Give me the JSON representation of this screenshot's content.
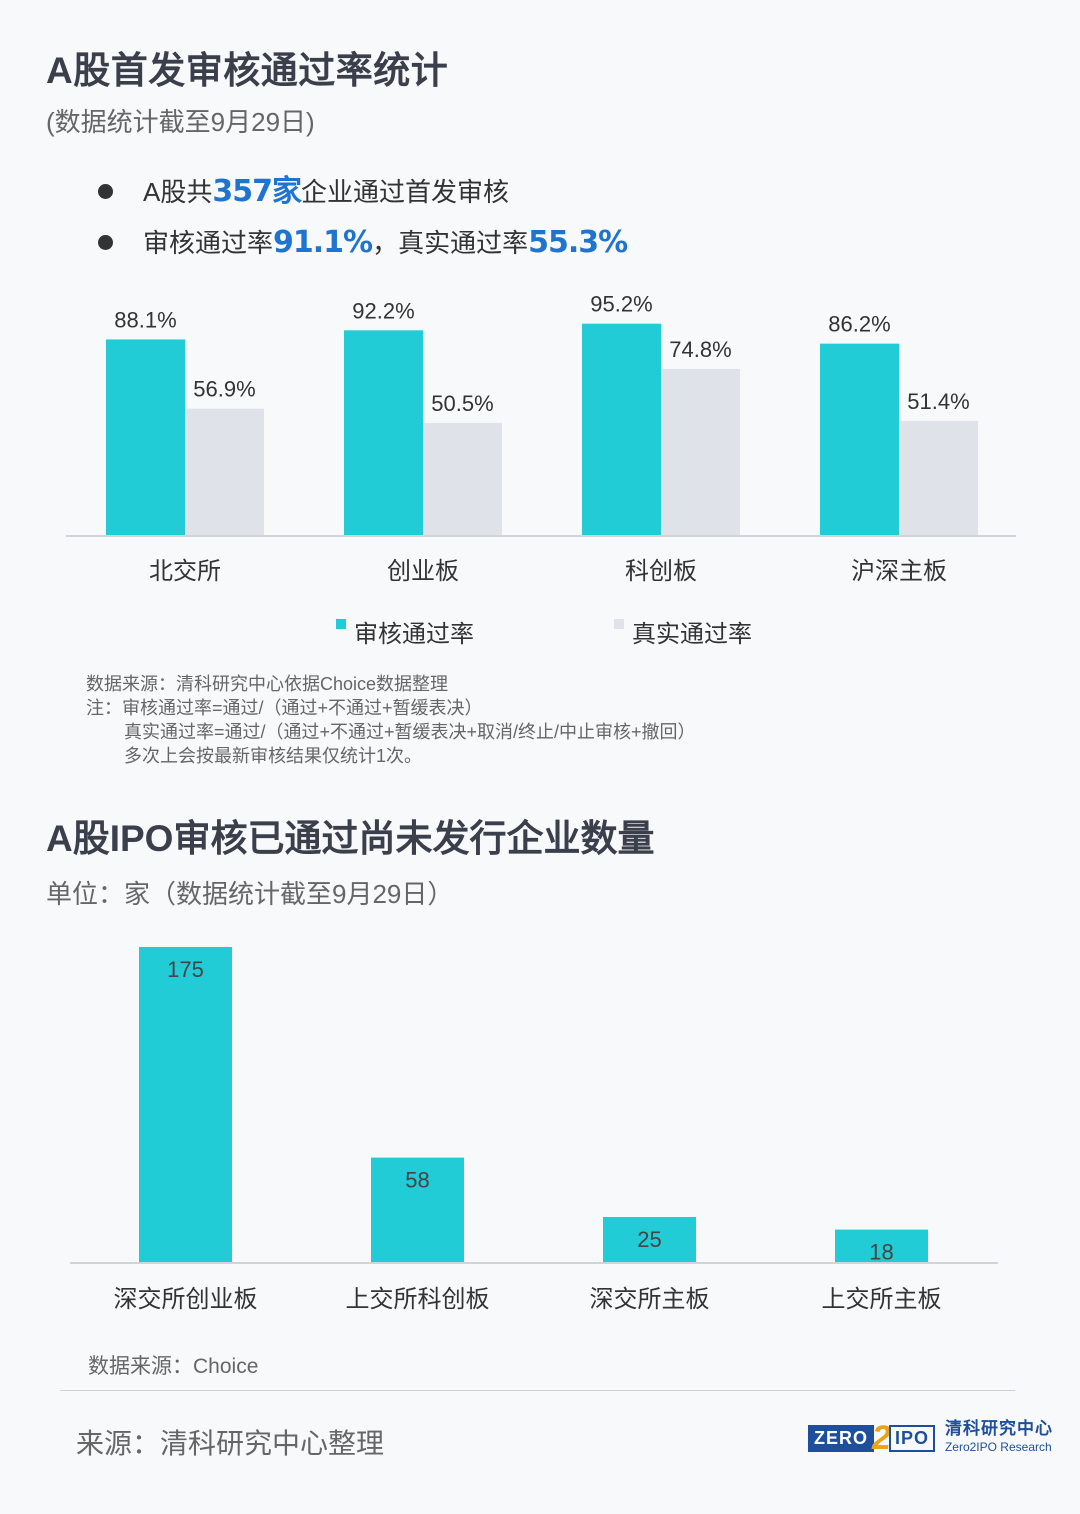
{
  "section1": {
    "title": "A股首发审核通过率统计",
    "subtitle": "(数据统计截至9月29日)",
    "bullet1": {
      "pre": "A股共",
      "num": "357家",
      "post": "企业通过首发审核"
    },
    "bullet2": {
      "pre": "审核通过率",
      "num1": "91.1%",
      "mid": "，真实通过率",
      "num2": "55.3%"
    },
    "legend": {
      "series1": "审核通过率",
      "series2": "真实通过率"
    },
    "notes": [
      "数据来源：清科研究中心依据Choice数据整理",
      "注：审核通过率=通过/（通过+不通过+暂缓表决）",
      "真实通过率=通过/（通过+不通过+暂缓表决+取消/终止/中止审核+撤回）",
      "多次上会按最新审核结果仅统计1次。"
    ]
  },
  "section2": {
    "title": "A股IPO审核已通过尚未发行企业数量",
    "subtitle": "单位：家（数据统计截至9月29日）",
    "source": "数据来源：Choice"
  },
  "footer": {
    "source": "来源：清科研究中心整理",
    "logo_zero": "ZERO",
    "logo_two": "2",
    "logo_ipo": "IPO",
    "logo_cn": "清科研究中心",
    "logo_en": "Zero2IPO Research"
  },
  "colors": {
    "teal": "#22ccd6",
    "gray": "#dfe2e8",
    "highlight": "#1f74d0"
  },
  "chart_data": [
    {
      "type": "bar",
      "categories": [
        "北交所",
        "创业板",
        "科创板",
        "沪深主板"
      ],
      "series": [
        {
          "name": "审核通过率",
          "values": [
            88.1,
            92.2,
            95.2,
            86.2
          ],
          "labels": [
            "88.1%",
            "92.2%",
            "95.2%",
            "86.2%"
          ]
        },
        {
          "name": "真实通过率",
          "values": [
            56.9,
            50.5,
            74.8,
            51.4
          ],
          "labels": [
            "56.9%",
            "50.5%",
            "74.8%",
            "51.4%"
          ]
        }
      ],
      "ylim": [
        0,
        100
      ],
      "grid": false,
      "legend": "bottom"
    },
    {
      "type": "bar",
      "categories": [
        "深交所创业板",
        "上交所科创板",
        "深交所主板",
        "上交所主板"
      ],
      "values": [
        175,
        58,
        25,
        18
      ],
      "labels": [
        "175",
        "58",
        "25",
        "18"
      ],
      "ylim": [
        0,
        175
      ],
      "grid": false
    }
  ]
}
